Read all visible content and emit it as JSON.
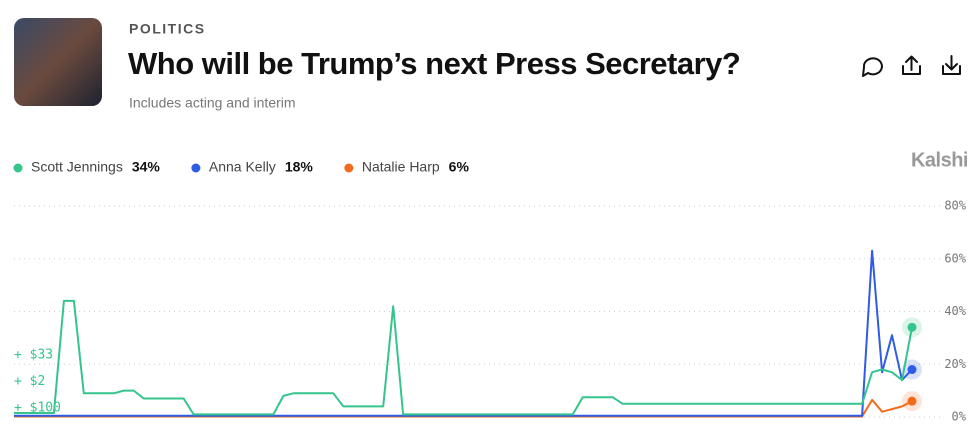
{
  "header": {
    "category": "POLITICS",
    "title": "Who will be Trump’s next Press Secretary?",
    "subtitle": "Includes acting and interim",
    "brand": "Kalshi"
  },
  "chart_data": {
    "type": "line",
    "annotations": [
      "+ $33",
      "+ $2",
      "+ $100"
    ],
    "ylim": [
      0,
      80
    ],
    "yticks": [
      {
        "value": 0,
        "label": "0%"
      },
      {
        "value": 20,
        "label": "20%"
      },
      {
        "value": 40,
        "label": "40%"
      },
      {
        "value": 60,
        "label": "60%"
      },
      {
        "value": 80,
        "label": "80%"
      }
    ],
    "grid": true,
    "series": [
      {
        "name": "Scott Jennings",
        "current_label": "34%",
        "color": "#35c48c",
        "values": [
          1.5,
          1.5,
          1.5,
          1.5,
          1.5,
          44,
          44,
          9,
          9,
          9,
          9,
          10,
          10,
          7,
          7,
          7,
          7,
          7,
          1,
          1,
          1,
          1,
          1,
          1,
          1,
          1,
          1,
          8,
          9,
          9,
          9,
          9,
          9,
          4,
          4,
          4,
          4,
          4,
          42,
          1,
          1,
          1,
          1,
          1,
          1,
          1,
          1,
          1,
          1,
          1,
          1,
          1,
          1,
          1,
          1,
          1,
          1,
          7.5,
          7.5,
          7.5,
          7.5,
          5,
          5,
          5,
          5,
          5,
          5,
          5,
          5,
          5,
          5,
          5,
          5,
          5,
          5,
          5,
          5,
          5,
          5,
          5,
          5,
          5,
          5,
          5,
          5,
          5,
          17,
          18,
          17,
          14,
          34
        ]
      },
      {
        "name": "Anna Kelly",
        "current_label": "18%",
        "color": "#2f5be6",
        "values": [
          0.5,
          0.5,
          0.5,
          0.5,
          0.5,
          0.5,
          0.5,
          0.5,
          0.5,
          0.5,
          0.5,
          0.5,
          0.5,
          0.5,
          0.5,
          0.5,
          0.5,
          0.5,
          0.5,
          0.5,
          0.5,
          0.5,
          0.5,
          0.5,
          0.5,
          0.5,
          0.5,
          0.5,
          0.5,
          0.5,
          0.5,
          0.5,
          0.5,
          0.5,
          0.5,
          0.5,
          0.5,
          0.5,
          0.5,
          0.5,
          0.5,
          0.5,
          0.5,
          0.5,
          0.5,
          0.5,
          0.5,
          0.5,
          0.5,
          0.5,
          0.5,
          0.5,
          0.5,
          0.5,
          0.5,
          0.5,
          0.5,
          0.5,
          0.5,
          0.5,
          0.5,
          0.5,
          0.5,
          0.5,
          0.5,
          0.5,
          0.5,
          0.5,
          0.5,
          0.5,
          0.5,
          0.5,
          0.5,
          0.5,
          0.5,
          0.5,
          0.5,
          0.5,
          0.5,
          0.5,
          0.5,
          0.5,
          0.5,
          0.5,
          0.5,
          0.5,
          63,
          17,
          31,
          14,
          18
        ]
      },
      {
        "name": "Natalie Harp",
        "current_label": "6%",
        "color": "#f26a1b",
        "values": [
          0.2,
          0.2,
          0.2,
          0.2,
          0.2,
          0.2,
          0.2,
          0.2,
          0.2,
          0.2,
          0.2,
          0.2,
          0.2,
          0.2,
          0.2,
          0.2,
          0.2,
          0.2,
          0.2,
          0.2,
          0.2,
          0.2,
          0.2,
          0.2,
          0.2,
          0.2,
          0.2,
          0.2,
          0.2,
          0.2,
          0.2,
          0.2,
          0.2,
          0.2,
          0.2,
          0.2,
          0.2,
          0.2,
          0.2,
          0.2,
          0.2,
          0.2,
          0.2,
          0.2,
          0.2,
          0.2,
          0.2,
          0.2,
          0.2,
          0.2,
          0.2,
          0.2,
          0.2,
          0.2,
          0.2,
          0.2,
          0.2,
          0.2,
          0.2,
          0.2,
          0.2,
          0.2,
          0.2,
          0.2,
          0.2,
          0.2,
          0.2,
          0.2,
          0.2,
          0.2,
          0.2,
          0.2,
          0.2,
          0.2,
          0.2,
          0.2,
          0.2,
          0.2,
          0.2,
          0.2,
          0.2,
          0.2,
          0.2,
          0.2,
          0.2,
          0.2,
          6.5,
          2,
          3,
          4,
          6
        ]
      }
    ]
  }
}
